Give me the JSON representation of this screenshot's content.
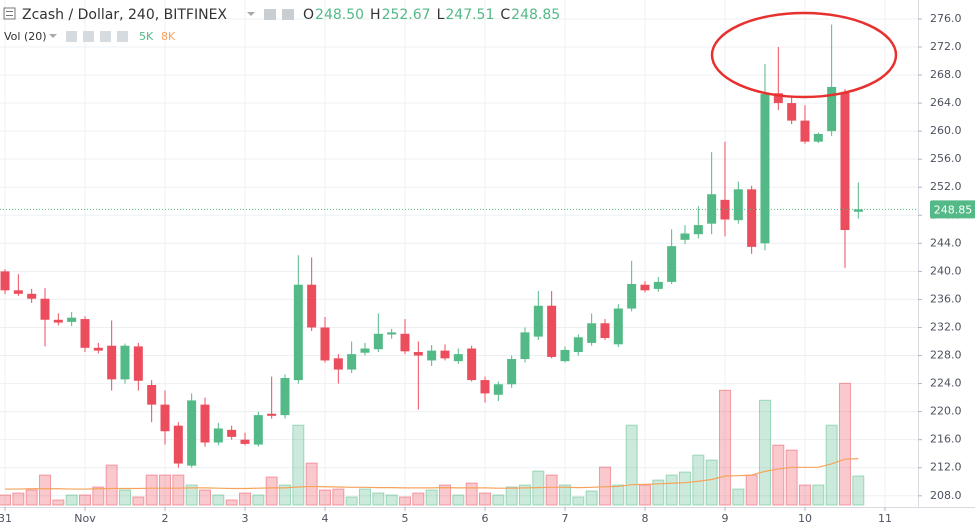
{
  "chart_data": {
    "type": "candlestick",
    "title": "Zcash / Dollar, 240, BITFINEX",
    "ohlc_legend": [
      {
        "label": "O",
        "value": "248.50"
      },
      {
        "label": "H",
        "value": "252.67"
      },
      {
        "label": "L",
        "value": "247.51"
      },
      {
        "label": "C",
        "value": "248.85"
      }
    ],
    "volume_title": "Vol (20)",
    "volume_legend": [
      "5K",
      "8K"
    ],
    "up_color": "#53b987",
    "down_color": "#eb4d5c",
    "ma_color": "#f7a35c",
    "open": [
      240,
      237.3,
      236.8,
      236.1,
      233.1,
      232.8,
      233.2,
      229.1,
      229.4,
      224.6,
      229.3,
      223.8,
      221.0,
      218.0,
      212.3,
      221.0,
      215.6,
      217.4,
      216.0,
      215.3,
      219.7,
      219.5,
      224.5,
      238.1,
      232.0,
      227.6,
      226.0,
      228.4,
      228.9,
      231.0,
      231.1,
      228.5,
      227.3,
      228.7,
      227.2,
      229.0,
      224.5,
      222.4,
      223.9,
      227.5,
      230.7,
      235.1,
      227.2,
      228.5,
      229.8,
      232.6,
      229.6,
      234.7,
      238.1,
      237.5,
      238.5,
      244.5,
      245.3,
      246.8,
      250.2,
      247.3,
      251.7,
      244.0,
      265.4,
      264.0,
      261.5,
      258.5,
      260.0,
      265.5,
      248.5
    ],
    "high": [
      240.3,
      239.6,
      237.5,
      237.6,
      234,
      234.2,
      233.6,
      229.8,
      233.0,
      229.7,
      229.8,
      224.5,
      223.0,
      218.5,
      222.6,
      222.0,
      218.4,
      218.0,
      217.0,
      220.0,
      225.0,
      225.3,
      242.3,
      242.0,
      233.5,
      228.2,
      230.0,
      229.8,
      234.0,
      231.8,
      233.2,
      230.0,
      229.5,
      229.6,
      229.0,
      229.4,
      225.0,
      224.3,
      228.0,
      232.0,
      237.2,
      237.2,
      229.3,
      231.0,
      234.0,
      233.2,
      235.3,
      241.5,
      238.6,
      239.2,
      246.0,
      246.6,
      249.3,
      257.0,
      258.5,
      252.8,
      252.2,
      269.6,
      272.0,
      265.0,
      263.7,
      259.8,
      275.2,
      266.0,
      252.67
    ],
    "low": [
      236.8,
      236.5,
      235.5,
      229.3,
      232.3,
      232.2,
      228.5,
      228.3,
      223.0,
      224.0,
      223.0,
      218.5,
      215.3,
      212.0,
      212.0,
      215.0,
      215.2,
      216.0,
      215.2,
      215.0,
      219.0,
      219.0,
      224.0,
      231.5,
      227.0,
      224.0,
      225.5,
      228.0,
      228.5,
      230.4,
      228.2,
      220.3,
      226.5,
      227.3,
      226.8,
      224.3,
      221.3,
      221.5,
      223.4,
      227.0,
      230.2,
      227.6,
      227.0,
      228.0,
      229.4,
      230.2,
      229.2,
      234.3,
      237.0,
      237.1,
      238.2,
      243.9,
      244.7,
      245.3,
      245.0,
      246.8,
      242.5,
      243.0,
      263.0,
      261.0,
      258.2,
      258.3,
      259.3,
      240.5,
      247.51
    ],
    "close": [
      237.3,
      236.8,
      236.1,
      233.1,
      232.7,
      233.4,
      229.1,
      228.7,
      224.6,
      229.4,
      224.4,
      221.0,
      217.2,
      212.6,
      221.6,
      215.6,
      217.6,
      216.4,
      215.4,
      219.5,
      219.4,
      224.8,
      238.1,
      232.0,
      227.3,
      226.0,
      228.2,
      229.0,
      231.1,
      231.3,
      228.6,
      228.0,
      228.7,
      227.6,
      228.2,
      224.5,
      222.6,
      223.9,
      227.5,
      231.3,
      235.1,
      227.8,
      228.8,
      230.6,
      232.6,
      230.5,
      234.7,
      238.2,
      237.3,
      238.5,
      243.6,
      245.4,
      246.6,
      251.0,
      247.4,
      251.7,
      243.5,
      265.3,
      264.0,
      261.5,
      258.5,
      259.6,
      266.3,
      245.9,
      248.85
    ],
    "volume": [
      1720,
      2060,
      2580,
      5160,
      860,
      1720,
      1720,
      3100,
      6880,
      2580,
      1380,
      5160,
      5160,
      5160,
      3440,
      2580,
      1720,
      860,
      2060,
      1720,
      4820,
      3440,
      13760,
      7220,
      2580,
      2750,
      1380,
      2750,
      2060,
      1720,
      1380,
      2060,
      2580,
      3440,
      1720,
      3780,
      2060,
      1720,
      3100,
      3440,
      5850,
      5160,
      3440,
      1380,
      2410,
      6540,
      3440,
      13760,
      3440,
      4300,
      5160,
      5680,
      8600,
      7740,
      19780,
      2750,
      5160,
      18060,
      10320,
      9460,
      3440,
      3440,
      13760,
      20980,
      5000
    ],
    "volume_ma": [
      2750,
      2750,
      2800,
      2800,
      2800,
      2750,
      2750,
      2800,
      2850,
      2850,
      2850,
      2900,
      2900,
      2900,
      2950,
      2950,
      2900,
      2850,
      2850,
      2900,
      2950,
      2950,
      3100,
      3200,
      3150,
      3100,
      3050,
      3050,
      3000,
      3000,
      2950,
      2950,
      2950,
      3000,
      2950,
      2950,
      2950,
      2900,
      2900,
      2950,
      3000,
      3050,
      3050,
      3000,
      3050,
      3150,
      3200,
      3500,
      3550,
      3650,
      3750,
      3850,
      4100,
      4400,
      5000,
      5050,
      5150,
      5800,
      6200,
      6500,
      6500,
      6500,
      7100,
      7900,
      8000
    ],
    "volume_ylim": [
      0,
      40000
    ],
    "ylim": [
      206.4,
      278.7
    ],
    "yticks": [
      {
        "value": 208,
        "label": "208.0"
      },
      {
        "value": 212,
        "label": "212.0"
      },
      {
        "value": 216,
        "label": "216.0"
      },
      {
        "value": 220,
        "label": "220.0"
      },
      {
        "value": 224,
        "label": "224.0"
      },
      {
        "value": 228,
        "label": "228.0"
      },
      {
        "value": 232,
        "label": "232.0"
      },
      {
        "value": 236,
        "label": "236.0"
      },
      {
        "value": 240,
        "label": "240.0"
      },
      {
        "value": 244,
        "label": "244.0"
      },
      {
        "value": 248,
        "label": "248.0"
      },
      {
        "value": 252,
        "label": "252.0"
      },
      {
        "value": 256,
        "label": "256.0"
      },
      {
        "value": 260,
        "label": "260.0"
      },
      {
        "value": 264,
        "label": "264.0"
      },
      {
        "value": 268,
        "label": "268.0"
      },
      {
        "value": 272,
        "label": "272.0"
      },
      {
        "value": 276,
        "label": "276.0"
      }
    ],
    "xticks": [
      {
        "value": 0,
        "label": "31"
      },
      {
        "value": 6,
        "label": "Nov"
      },
      {
        "value": 12,
        "label": "2"
      },
      {
        "value": 18,
        "label": "3"
      },
      {
        "value": 24,
        "label": "4"
      },
      {
        "value": 30,
        "label": "5"
      },
      {
        "value": 36,
        "label": "6"
      },
      {
        "value": 42,
        "label": "7"
      },
      {
        "value": 48,
        "label": "8"
      },
      {
        "value": 54,
        "label": "9"
      },
      {
        "value": 60,
        "label": "10"
      },
      {
        "value": 66,
        "label": "11"
      }
    ],
    "grid": true
  }
}
